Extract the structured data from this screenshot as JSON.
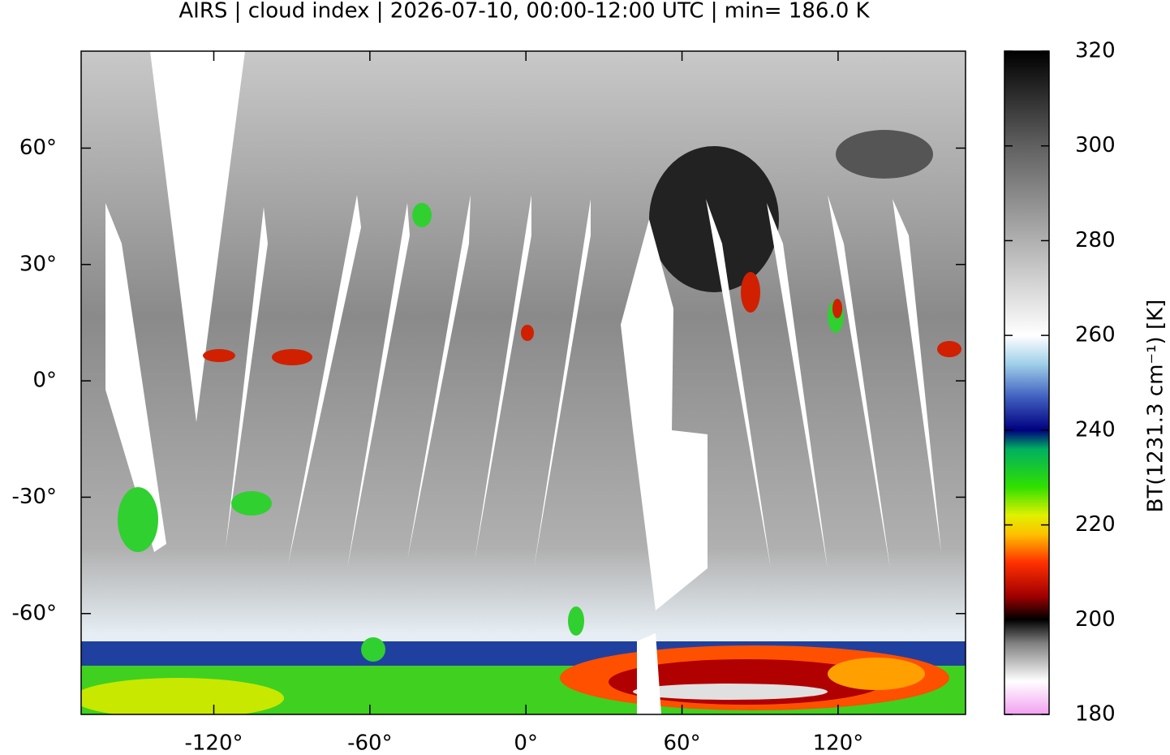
{
  "chart_data": {
    "type": "map",
    "title": "AIRS | cloud index | 2026-07-10, 00:00-12:00 UTC | min= 186.0 K",
    "xlim": [
      -171,
      169
    ],
    "ylim": [
      -86,
      85
    ],
    "xticks": [
      {
        "value": -120,
        "label": "-120°"
      },
      {
        "value": -60,
        "label": "-60°"
      },
      {
        "value": 0,
        "label": "0°"
      },
      {
        "value": 60,
        "label": "60°"
      },
      {
        "value": 120,
        "label": "120°"
      }
    ],
    "yticks": [
      {
        "value": -60,
        "label": "-60°"
      },
      {
        "value": -30,
        "label": "-30°"
      },
      {
        "value": 0,
        "label": "0°"
      },
      {
        "value": 30,
        "label": "30°"
      },
      {
        "value": 60,
        "label": "60°"
      }
    ],
    "colorbar": {
      "label": "BT(1231.3 cm⁻¹) [K]",
      "lim": [
        180,
        320
      ],
      "ticks": [
        180,
        200,
        220,
        240,
        260,
        280,
        300,
        320
      ],
      "colormap": [
        {
          "value": 180,
          "color": "#f2a0f0"
        },
        {
          "value": 187,
          "color": "#ffffff"
        },
        {
          "value": 195,
          "color": "#808080"
        },
        {
          "value": 200,
          "color": "#000000"
        },
        {
          "value": 205,
          "color": "#a00000"
        },
        {
          "value": 212,
          "color": "#ff3000"
        },
        {
          "value": 218,
          "color": "#ffc000"
        },
        {
          "value": 222,
          "color": "#e0f000"
        },
        {
          "value": 228,
          "color": "#30e000"
        },
        {
          "value": 236,
          "color": "#00b060"
        },
        {
          "value": 240,
          "color": "#000080"
        },
        {
          "value": 247,
          "color": "#4060c0"
        },
        {
          "value": 254,
          "color": "#a0d0e8"
        },
        {
          "value": 260,
          "color": "#ffffff"
        },
        {
          "value": 280,
          "color": "#b0b0b0"
        },
        {
          "value": 300,
          "color": "#606060"
        },
        {
          "value": 320,
          "color": "#000000"
        }
      ]
    }
  }
}
